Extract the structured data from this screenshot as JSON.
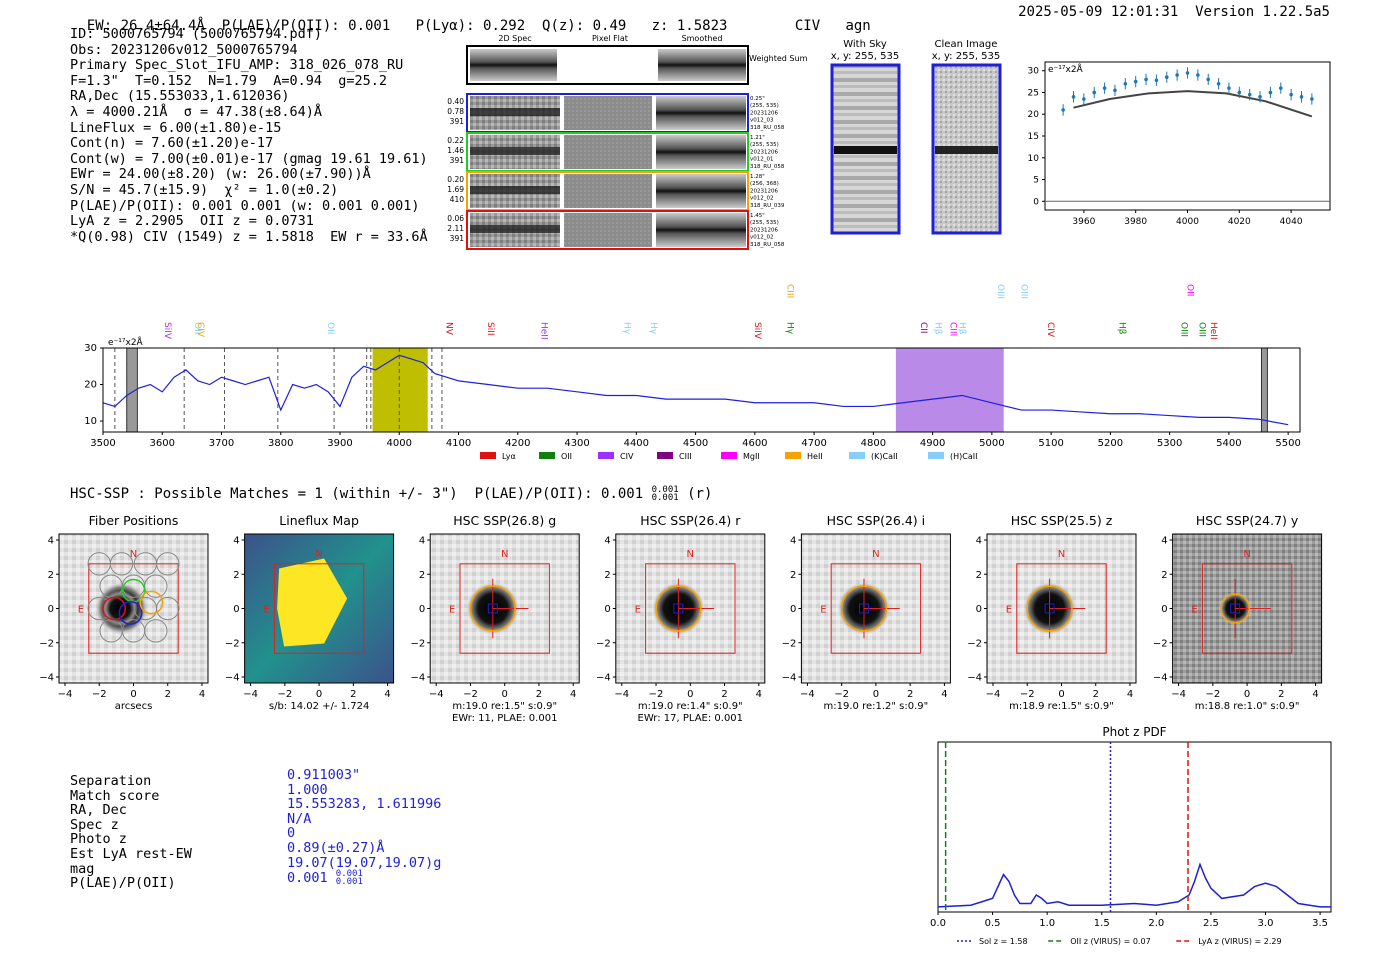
{
  "header": {
    "left": "EW: 26.4±64.4Å  P(LAE)/P(OII): 0.001   P(Lyα): 0.292  Q(z): 0.49   z: 1.5823        CIV   agn",
    "right": "2025-05-09 12:01:31  Version 1.22.5a5"
  },
  "info_lines": [
    "ID: 5000765794 (5000765794.pdf)",
    "Obs: 20231206v012_5000765794",
    "Primary Spec_Slot_IFU_AMP: 318_026_078_RU",
    "F=1.3\"  T=0.152  N=1.79  A=0.94  g=25.2",
    "RA,Dec (15.553033,1.612036)",
    "λ = 4000.21Å  σ = 47.38(±8.64)Å",
    "LineFlux = 6.00(±1.80)e-15",
    "Cont(n) = 7.60(±1.20)e-17",
    "Cont(w) = 7.00(±0.01)e-17 (gmag 19.61 19.61)",
    "EWr = 24.00(±8.20) (w: 26.00(±7.90))Å",
    "S/N = 45.7(±15.9)  χ² = 1.0(±0.2)",
    "P(LAE)/P(OII): 0.001 0.001 (w: 0.001 0.001)",
    "LyA z = 2.2905  OII z = 0.0731",
    "*Q(0.98) CIV (1549) z = 1.5818  EW r = 33.6Å"
  ],
  "cutouts": {
    "col_titles": [
      "2D Spec",
      "Pixel Flat",
      "Smoothed"
    ],
    "weighted_label": "Weighted Sum",
    "rows": [
      {
        "left": [
          "0.40",
          "0.78",
          "391"
        ],
        "right": [
          "0.25\"",
          "(255, 535)",
          "20231206",
          "v012_03",
          "318_RU_058"
        ],
        "color": "#1f1fd6"
      },
      {
        "left": [
          "0.22",
          "1.46",
          "391"
        ],
        "right": [
          "1.21\"",
          "(255, 535)",
          "20231206",
          "v012_01",
          "318_RU_058"
        ],
        "color": "#22cc22"
      },
      {
        "left": [
          "0.20",
          "1.69",
          "410"
        ],
        "right": [
          "1.28\"",
          "(256, 368)",
          "20231206",
          "v012_02",
          "318_RU_039"
        ],
        "color": "#f5a300"
      },
      {
        "left": [
          "0.06",
          "2.11",
          "391"
        ],
        "right": [
          "1.45\"",
          "(255, 535)",
          "20231206",
          "v012_02",
          "318_RU_058"
        ],
        "color": "#e01010"
      }
    ],
    "with_sky_title": "With Sky",
    "with_sky_sub": "x, y: 255, 535",
    "clean_title": "Clean Image",
    "clean_sub": "x, y: 255, 535"
  },
  "colors": {
    "line_blue": "#1f1fe0",
    "data_blue": "#1f77b4",
    "fit_gray": "#444444",
    "olive_band": "#bfbf00",
    "purple_band": "#b98ae8",
    "red_box": "#e02020",
    "aperture": "#f5a300"
  },
  "chart_data": [
    {
      "type": "scatter",
      "title": "",
      "ylabel_note": "e⁻¹⁷x2Å",
      "x": [
        3952,
        3956,
        3960,
        3964,
        3968,
        3972,
        3976,
        3980,
        3984,
        3988,
        3992,
        3996,
        4000,
        4004,
        4008,
        4012,
        4016,
        4020,
        4024,
        4028,
        4032,
        4036,
        4040,
        4044,
        4048
      ],
      "y": [
        21,
        24,
        23.5,
        25,
        26,
        25.5,
        27,
        27.5,
        28,
        27.8,
        28.5,
        29,
        29.5,
        29,
        28,
        27,
        26,
        25,
        24.5,
        24,
        25,
        26,
        24.5,
        24,
        23.5
      ],
      "fit_x": [
        3956,
        3970,
        3985,
        4000,
        4015,
        4030,
        4048
      ],
      "fit_y": [
        21.5,
        23.5,
        24.8,
        25.3,
        24.8,
        23,
        19.5
      ],
      "xlim": [
        3945,
        4055
      ],
      "ylim": [
        -2,
        32
      ],
      "xticks": [
        3960,
        3980,
        4000,
        4020,
        4040
      ],
      "yticks": [
        0,
        5,
        10,
        15,
        20,
        25,
        30
      ]
    },
    {
      "type": "line",
      "ylabel_note": "e⁻¹⁷x2Å",
      "xlim": [
        3500,
        5520
      ],
      "ylim": [
        7,
        30
      ],
      "xticks": [
        3500,
        3600,
        3700,
        3800,
        3900,
        4000,
        4100,
        4200,
        4300,
        4400,
        4500,
        4600,
        4700,
        4800,
        4900,
        5000,
        5100,
        5200,
        5300,
        5400,
        5500
      ],
      "yticks": [
        10,
        20,
        30
      ],
      "x": [
        3500,
        3520,
        3540,
        3560,
        3580,
        3600,
        3620,
        3640,
        3660,
        3680,
        3700,
        3720,
        3740,
        3760,
        3780,
        3800,
        3820,
        3840,
        3860,
        3880,
        3900,
        3920,
        3940,
        3960,
        3980,
        4000,
        4020,
        4040,
        4060,
        4080,
        4100,
        4150,
        4200,
        4250,
        4300,
        4350,
        4400,
        4450,
        4500,
        4550,
        4600,
        4650,
        4700,
        4750,
        4800,
        4850,
        4900,
        4950,
        5000,
        5050,
        5100,
        5150,
        5200,
        5250,
        5300,
        5350,
        5400,
        5450,
        5500
      ],
      "y": [
        15,
        14,
        17,
        19,
        20,
        18,
        22,
        24,
        21,
        20,
        22,
        21,
        20,
        21,
        22,
        13,
        20,
        19,
        20,
        18,
        14,
        22,
        25,
        24,
        26,
        28,
        27,
        26,
        23,
        22,
        21,
        20,
        19,
        19,
        18,
        17,
        17,
        16,
        16,
        16,
        15,
        15,
        15,
        14,
        14,
        15,
        16,
        17,
        15,
        13,
        13,
        12.5,
        12,
        12,
        11.5,
        11,
        11,
        10.5,
        9
      ]
    },
    {
      "type": "line",
      "title": "Phot z PDF",
      "xlim": [
        0,
        3.6
      ],
      "xticks": [
        0.0,
        0.5,
        1.0,
        1.5,
        2.0,
        2.5,
        3.0,
        3.5
      ],
      "x": [
        0,
        0.3,
        0.5,
        0.55,
        0.6,
        0.65,
        0.7,
        0.75,
        0.85,
        0.9,
        0.95,
        1.0,
        1.1,
        1.2,
        1.5,
        1.8,
        2.0,
        2.2,
        2.3,
        2.35,
        2.4,
        2.45,
        2.5,
        2.6,
        2.8,
        2.9,
        3.0,
        3.1,
        3.2,
        3.3,
        3.5,
        3.6
      ],
      "y": [
        0.03,
        0.04,
        0.08,
        0.15,
        0.22,
        0.18,
        0.1,
        0.05,
        0.05,
        0.1,
        0.08,
        0.05,
        0.06,
        0.04,
        0.04,
        0.05,
        0.04,
        0.06,
        0.1,
        0.18,
        0.28,
        0.2,
        0.14,
        0.08,
        0.1,
        0.15,
        0.17,
        0.15,
        0.1,
        0.05,
        0.03,
        0.03
      ],
      "vlines": [
        {
          "name": "Sol z = 1.58",
          "x": 1.58,
          "style": "dotted",
          "color": "#1f1fd6"
        },
        {
          "name": "OII z (VIRUS) = 0.07",
          "x": 0.07,
          "style": "dashed",
          "color": "#108010"
        },
        {
          "name": "LyA z (VIRUS) = 2.29",
          "x": 2.29,
          "style": "dashed",
          "color": "#e01010"
        }
      ]
    }
  ],
  "spectrum_lines": [
    {
      "label": "SiIV",
      "x": 3605,
      "color": "#9b30ff"
    },
    {
      "label": "OII",
      "x": 3655,
      "color": "#87cefa"
    },
    {
      "label": "CIV",
      "x": 3660,
      "color": "#f5a300"
    },
    {
      "label": "OII",
      "x": 3880,
      "color": "#87cefa"
    },
    {
      "label": "NV",
      "x": 4080,
      "color": "#e01010"
    },
    {
      "label": "SiII",
      "x": 4150,
      "color": "#e01010"
    },
    {
      "label": "HeII",
      "x": 4240,
      "color": "#9b30ff"
    },
    {
      "label": "Hγ",
      "x": 4380,
      "color": "#87cefa"
    },
    {
      "label": "Hγ",
      "x": 4425,
      "color": "#87cefa"
    },
    {
      "label": "SiIV",
      "x": 4600,
      "color": "#e01010"
    },
    {
      "label": "CIII",
      "x": 4655,
      "color": "#f5a300"
    },
    {
      "label": "Hγ",
      "x": 4655,
      "color": "#108010"
    },
    {
      "label": "CII",
      "x": 4880,
      "color": "#800080"
    },
    {
      "label": "Hβ",
      "x": 4905,
      "color": "#87cefa"
    },
    {
      "label": "CIII",
      "x": 4930,
      "color": "#ff00ff"
    },
    {
      "label": "Hβ",
      "x": 4945,
      "color": "#87cefa"
    },
    {
      "label": "OIII",
      "x": 5010,
      "color": "#87cefa"
    },
    {
      "label": "OIII",
      "x": 5050,
      "color": "#87cefa"
    },
    {
      "label": "CIV",
      "x": 5095,
      "color": "#e01010"
    },
    {
      "label": "Hβ",
      "x": 5215,
      "color": "#108010"
    },
    {
      "label": "OIII",
      "x": 5320,
      "color": "#108010"
    },
    {
      "label": "OIII",
      "x": 5350,
      "color": "#108010"
    },
    {
      "label": "HeII",
      "x": 5370,
      "color": "#e01010"
    },
    {
      "label": "OII",
      "x": 5330,
      "color": "#ff00ff"
    }
  ],
  "spectrum_legend": [
    {
      "label": "Lyα",
      "color": "#e01010"
    },
    {
      "label": "OII",
      "color": "#108010"
    },
    {
      "label": "CIV",
      "color": "#9b30ff"
    },
    {
      "label": "CIII",
      "color": "#800080"
    },
    {
      "label": "MgII",
      "color": "#ff00ff"
    },
    {
      "label": "HeII",
      "color": "#f5a300"
    },
    {
      "label": "(K)CaII",
      "color": "#87cefa"
    },
    {
      "label": "(H)CaII",
      "color": "#87cefa"
    }
  ],
  "hsc_line": "HSC-SSP : Possible Matches = 1 (within +/- 3\")  P(LAE)/P(OII): 0.001",
  "hsc_line_tail": "(r)",
  "hsc_sup": "0.001",
  "hsc_sub": "0.001",
  "image_panels": [
    {
      "title": "Fiber Positions",
      "caption1": "arcsecs",
      "caption2": "",
      "axis_label": "N",
      "east": "E"
    },
    {
      "title": "Lineflux Map",
      "caption1": "s/b: 14.02 +/- 1.724",
      "caption2": "",
      "axis_label": "N",
      "east": "E"
    },
    {
      "title": "HSC SSP(26.8) g",
      "caption1": "m:19.0  re:1.5\"  s:0.9\"",
      "caption2": "EWr: 11, PLAE: 0.001",
      "axis_label": "N",
      "east": "E"
    },
    {
      "title": "HSC SSP(26.4) r",
      "caption1": "m:19.0  re:1.4\"  s:0.9\"",
      "caption2": "EWr: 17, PLAE: 0.001",
      "axis_label": "N",
      "east": "E"
    },
    {
      "title": "HSC SSP(26.4) i",
      "caption1": "m:19.0  re:1.2\"  s:0.9\"",
      "caption2": "",
      "axis_label": "N",
      "east": "E"
    },
    {
      "title": "HSC SSP(25.5) z",
      "caption1": "m:18.9  re:1.5\"  s:0.9\"",
      "caption2": "",
      "axis_label": "N",
      "east": "E"
    },
    {
      "title": "HSC SSP(24.7) y",
      "caption1": "m:18.8  re:1.0\"  s:0.9\"",
      "caption2": "",
      "axis_label": "N",
      "east": "E"
    }
  ],
  "image_ticks": [
    "4",
    "2",
    "0",
    "−2",
    "−4"
  ],
  "image_xticks": [
    "−4",
    "−2",
    "0",
    "2",
    "4"
  ],
  "match": {
    "labels": [
      "Separation",
      "Match score",
      "RA, Dec",
      "Spec z",
      "Photo z",
      "Est LyA rest-EW",
      "mag",
      "P(LAE)/P(OII)"
    ],
    "values": [
      "0.911003\"",
      "1.000",
      "15.553283, 1.611996",
      "N/A",
      "0",
      "0.89(±0.27)Å",
      "19.07(19.07,19.07)g",
      "0.001"
    ],
    "plae_sup": "0.001",
    "plae_sub": "0.001"
  }
}
